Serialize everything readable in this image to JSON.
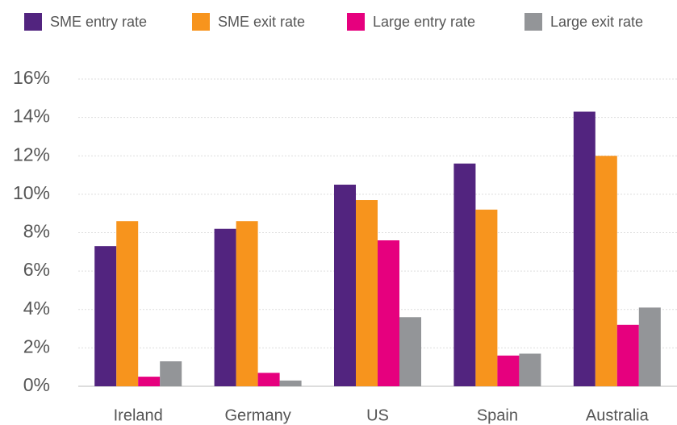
{
  "chart_data": {
    "type": "bar",
    "categories": [
      "Ireland",
      "Germany",
      "US",
      "Spain",
      "Australia"
    ],
    "series": [
      {
        "name": "SME entry rate",
        "color": "#52247f",
        "values": [
          7.3,
          8.2,
          10.5,
          11.6,
          14.3
        ]
      },
      {
        "name": "SME exit rate",
        "color": "#f7941d",
        "values": [
          8.6,
          8.6,
          9.7,
          9.2,
          12.0
        ]
      },
      {
        "name": "Large entry rate",
        "color": "#e6007e",
        "values": [
          0.5,
          0.7,
          7.6,
          1.6,
          3.2
        ]
      },
      {
        "name": "Large exit rate",
        "color": "#939598",
        "values": [
          1.3,
          0.3,
          3.6,
          1.7,
          4.1
        ]
      }
    ],
    "ylim": [
      0,
      16
    ],
    "yticks": [
      {
        "value": 0,
        "label": "0%"
      },
      {
        "value": 2,
        "label": "2%"
      },
      {
        "value": 4,
        "label": "4%"
      },
      {
        "value": 6,
        "label": "6%"
      },
      {
        "value": 8,
        "label": "8%"
      },
      {
        "value": 10,
        "label": "10%"
      },
      {
        "value": 12,
        "label": "12%"
      },
      {
        "value": 14,
        "label": "14%"
      },
      {
        "value": 16,
        "label": "16%"
      }
    ],
    "grid": true,
    "legend": "top"
  }
}
